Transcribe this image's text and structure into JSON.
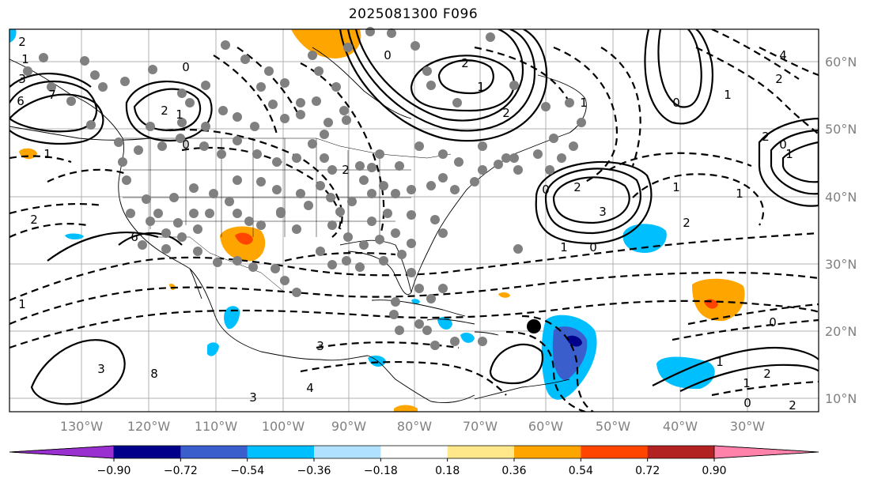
{
  "title": "2025081300 F096",
  "map": {
    "lon_labels": [
      "130°W",
      "120°W",
      "110°W",
      "100°W",
      "90°W",
      "80°W",
      "70°W",
      "60°W",
      "50°W",
      "40°W",
      "30°W"
    ],
    "lat_labels": [
      "60°N",
      "50°N",
      "40°N",
      "30°N",
      "20°N",
      "10°N"
    ],
    "contour_labels": [
      "2",
      "1",
      "3",
      "6",
      "7",
      "0",
      "2",
      "1",
      "0",
      "1",
      "2",
      "6",
      "3",
      "8",
      "3",
      "4",
      "3",
      "2",
      "0",
      "2",
      "1",
      "2",
      "1",
      "0",
      "2",
      "3",
      "0",
      "1",
      "4",
      "2",
      "1",
      "2",
      "1",
      "2",
      "0",
      "1",
      "1",
      "0",
      "0",
      "1",
      "1",
      "2",
      "0",
      "2",
      "1"
    ]
  },
  "colorbar": {
    "ticks": [
      "−0.90",
      "−0.72",
      "−0.54",
      "−0.36",
      "−0.18",
      "0.18",
      "0.36",
      "0.54",
      "0.72",
      "0.90"
    ],
    "colors": [
      "#9b30d0",
      "#00008b",
      "#3a5fcd",
      "#00bfff",
      "#b0e2ff",
      "#ffffff",
      "#ffe88a",
      "#ffa500",
      "#ff4500",
      "#b22222",
      "#ff82ab"
    ]
  },
  "storm_marker": "black-dot"
}
